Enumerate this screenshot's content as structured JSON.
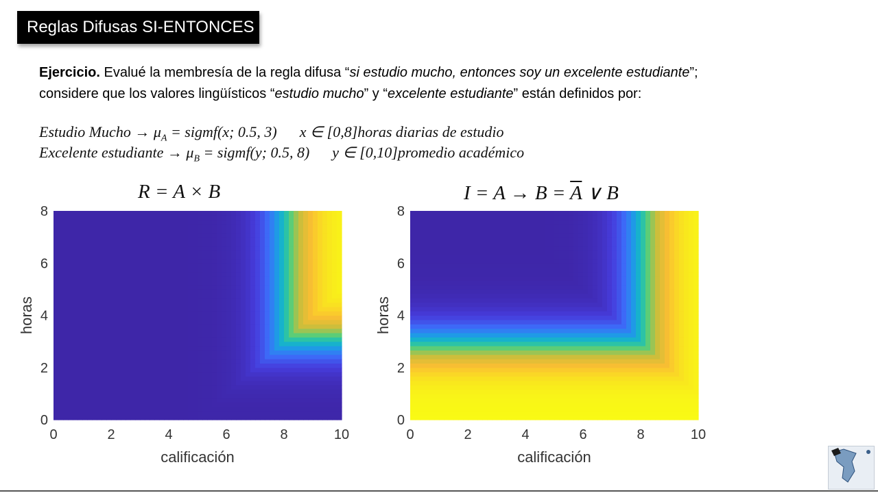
{
  "slide": {
    "title": "Reglas Difusas SI-ENTONCES",
    "exercise": {
      "label": "Ejercicio.",
      "line1_a": " Evalué la membresía de la regla difusa “",
      "line1_italic": "si estudio mucho, entonces soy un excelente estudiante",
      "line1_b": "”;",
      "line2_a": "considere que los valores lingüísticos “",
      "line2_italic1": "estudio mucho",
      "line2_b": "” y “",
      "line2_italic2": "excelente estudiante",
      "line2_c": "” están definidos por:"
    },
    "formulas": [
      {
        "name": "Estudio Mucho",
        "mu": "μ",
        "sub": "A",
        "expr": " = sigmf(x; 0.5, 3)",
        "domain": "x ∈ [0,8]horas diarias de estudio"
      },
      {
        "name": "Excelente estudiante",
        "mu": "μ",
        "sub": "B",
        "expr": " = sigmf(y; 0.5, 8)",
        "domain": "y ∈ [0,10]promedio académico"
      }
    ],
    "plot_titles": {
      "left": "R = A × B",
      "right_pre": "I = A → B = ",
      "right_abar": "A",
      "right_post": " ∨ B"
    }
  },
  "chart_data": [
    {
      "type": "heatmap",
      "title": "R = A × B",
      "xlabel": "calificación",
      "ylabel": "horas",
      "xlim": [
        0,
        10
      ],
      "ylim": [
        0,
        8
      ],
      "x_ticks": [
        "0",
        "2",
        "4",
        "6",
        "8",
        "10"
      ],
      "y_ticks": [
        "0",
        "2",
        "4",
        "6",
        "8"
      ],
      "colormap": "parula",
      "value": "min(sigmf(horas;0.5,3), sigmf(calificación;0.5,8))",
      "sigmf_A": {
        "a": 0.5,
        "c": 3
      },
      "sigmf_B": {
        "a": 0.5,
        "c": 8
      }
    },
    {
      "type": "heatmap",
      "title": "I = A → B = Ā ∨ B",
      "xlabel": "calificación",
      "ylabel": "horas",
      "xlim": [
        0,
        10
      ],
      "ylim": [
        0,
        8
      ],
      "x_ticks": [
        "0",
        "2",
        "4",
        "6",
        "8",
        "10"
      ],
      "y_ticks": [
        "0",
        "2",
        "4",
        "6",
        "8"
      ],
      "colormap": "parula",
      "value": "max(1 - sigmf(horas;0.5,3), sigmf(calificación;0.5,8))",
      "sigmf_A": {
        "a": 0.5,
        "c": 3
      },
      "sigmf_B": {
        "a": 0.5,
        "c": 8
      }
    }
  ]
}
